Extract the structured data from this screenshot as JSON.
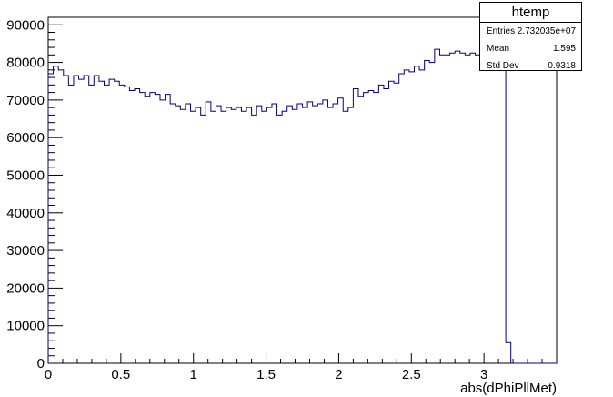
{
  "chart_data": {
    "type": "histogram",
    "title": "",
    "xlabel": "abs(dPhiPllMet)",
    "ylabel": "",
    "xlim": [
      0,
      3.5
    ],
    "ylim": [
      0,
      92000
    ],
    "bin_width": 0.035,
    "x_ticks": [
      0,
      0.5,
      1,
      1.5,
      2,
      2.5,
      3
    ],
    "x_tick_labels": [
      "0",
      "0.5",
      "1",
      "1.5",
      "2",
      "2.5",
      "3"
    ],
    "y_ticks": [
      0,
      10000,
      20000,
      30000,
      40000,
      50000,
      60000,
      70000,
      80000,
      90000
    ],
    "y_tick_labels": [
      "0",
      "10000",
      "20000",
      "30000",
      "40000",
      "50000",
      "60000",
      "70000",
      "80000",
      "90000"
    ],
    "grid": false,
    "color": "#000080",
    "values": [
      77000,
      79000,
      78000,
      76500,
      74000,
      76500,
      75500,
      76500,
      74000,
      76500,
      75000,
      74000,
      75500,
      75000,
      74000,
      73500,
      72500,
      73000,
      72000,
      71000,
      72000,
      71500,
      70000,
      71500,
      69000,
      68500,
      67500,
      69000,
      67000,
      68000,
      66000,
      69500,
      67000,
      68500,
      67000,
      68000,
      67500,
      68000,
      67000,
      68000,
      66000,
      68500,
      67000,
      68000,
      69000,
      66000,
      67000,
      68500,
      67500,
      69000,
      68000,
      69500,
      68500,
      69000,
      70000,
      68000,
      69000,
      70500,
      67000,
      68000,
      73000,
      71000,
      72000,
      72500,
      72000,
      74000,
      73000,
      75000,
      74500,
      77000,
      78000,
      77500,
      79000,
      78000,
      80500,
      80000,
      83500,
      82000,
      82000,
      82500,
      83000,
      82500,
      82000,
      82500,
      82000,
      82000,
      83000,
      82500,
      82500,
      82000,
      5500,
      0,
      0,
      0,
      0,
      0,
      0,
      0,
      0,
      0
    ]
  },
  "stats": {
    "title": "htemp",
    "rows": [
      {
        "label": "Entries",
        "value": "2.732035e+07"
      },
      {
        "label": "Mean",
        "value": "1.595"
      },
      {
        "label": "Std Dev",
        "value": "0.9318"
      }
    ]
  }
}
